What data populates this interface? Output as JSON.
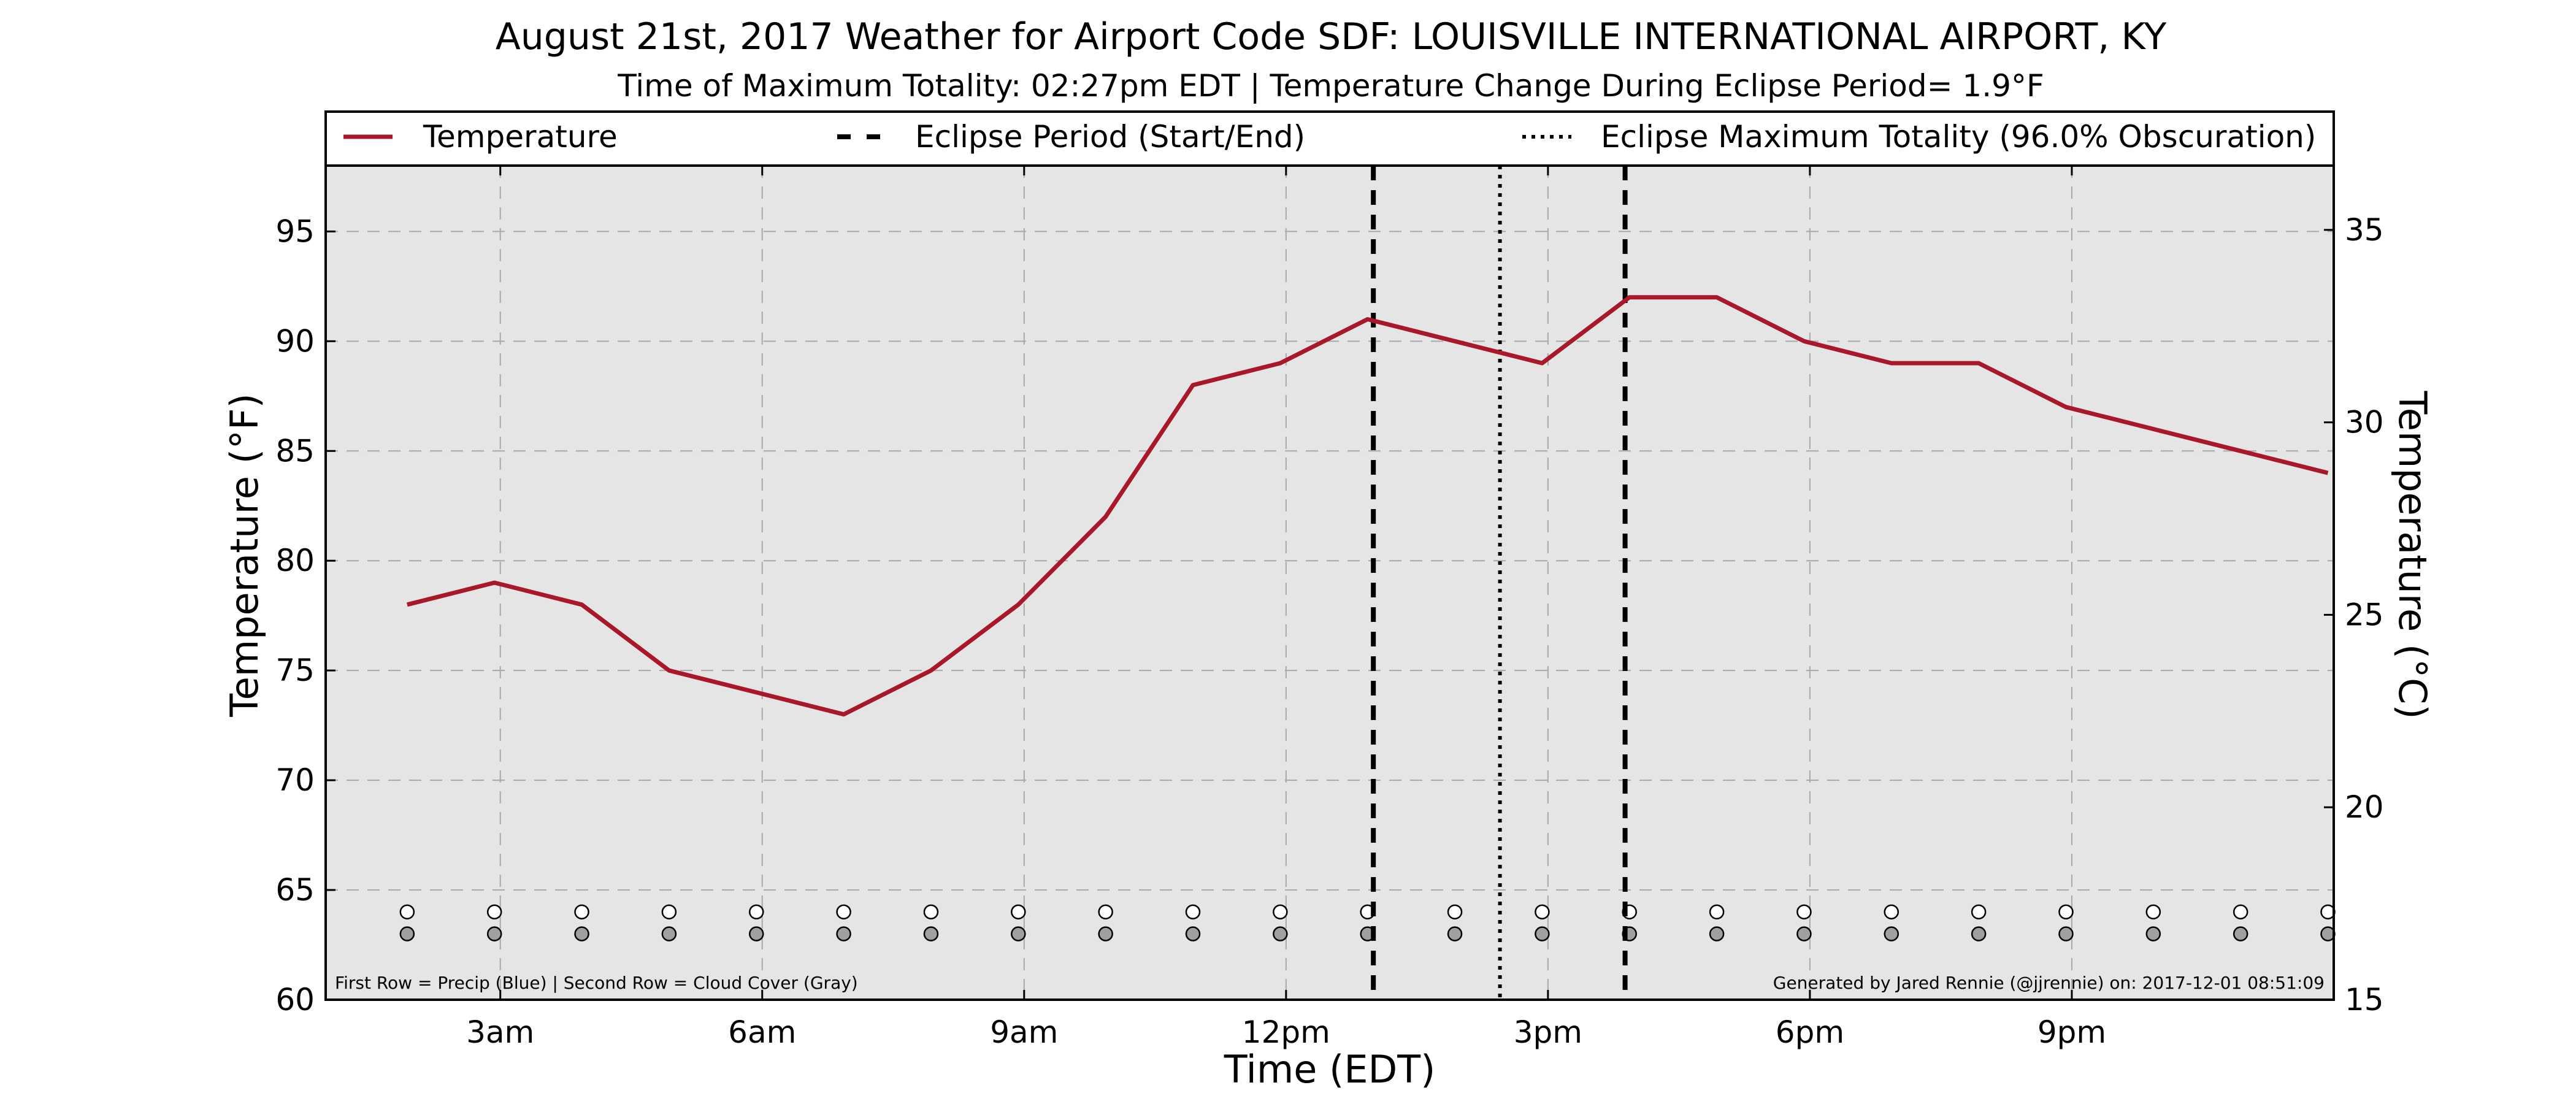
{
  "chart_data": {
    "type": "line",
    "title": "August 21st, 2017 Weather for Airport Code SDF: LOUISVILLE INTERNATIONAL AIRPORT, KY",
    "subtitle": "Time of Maximum Totality: 02:27pm EDT | Temperature Change During Eclipse Period= 1.9°F",
    "xlabel": "Time (EDT)",
    "ylabel": "Temperature (°F)",
    "ylabel_right": "Temperature (°C)",
    "xlim": [
      "01:00",
      "24:00"
    ],
    "ylim": [
      60,
      98
    ],
    "ylim_right": [
      15,
      36.67
    ],
    "x_ticks": [
      {
        "x": "03:00",
        "label": "3am"
      },
      {
        "x": "06:00",
        "label": "6am"
      },
      {
        "x": "09:00",
        "label": "9am"
      },
      {
        "x": "12:00",
        "label": "12pm"
      },
      {
        "x": "15:00",
        "label": "3pm"
      },
      {
        "x": "18:00",
        "label": "6pm"
      },
      {
        "x": "21:00",
        "label": "9pm"
      }
    ],
    "y_ticks": [
      60,
      65,
      70,
      75,
      80,
      85,
      90,
      95
    ],
    "y_ticks_right": [
      15,
      20,
      25,
      30,
      35
    ],
    "grid": true,
    "legend_position": "top",
    "series": [
      {
        "name": "Temperature",
        "color": "#a8172a",
        "x": [
          "01:56",
          "02:56",
          "03:56",
          "04:56",
          "05:56",
          "06:56",
          "07:56",
          "08:56",
          "09:56",
          "10:56",
          "11:56",
          "12:56",
          "13:56",
          "14:56",
          "15:56",
          "16:56",
          "17:56",
          "18:56",
          "19:56",
          "20:56",
          "21:56",
          "22:56",
          "23:56"
        ],
        "values": [
          78,
          79,
          78,
          75,
          74,
          73,
          75,
          78,
          82,
          88,
          89,
          91,
          90,
          89,
          92,
          92,
          90,
          89,
          89,
          87,
          86,
          85,
          84
        ]
      }
    ],
    "eclipse_lines": [
      {
        "name": "Eclipse Period (Start/End)",
        "style": "dashed",
        "x": [
          "13:00",
          "15:53"
        ]
      },
      {
        "name": "Eclipse Maximum Totality (96.0% Obscuration)",
        "style": "dotted",
        "x": [
          "14:27"
        ]
      }
    ],
    "marker_rows": {
      "x": [
        "01:56",
        "02:56",
        "03:56",
        "04:56",
        "05:56",
        "06:56",
        "07:56",
        "08:56",
        "09:56",
        "10:56",
        "11:56",
        "12:56",
        "13:56",
        "14:56",
        "15:56",
        "16:56",
        "17:56",
        "18:56",
        "19:56",
        "20:56",
        "21:56",
        "22:56",
        "23:56"
      ],
      "precip_y": 64,
      "cloud_y": 63,
      "precip_color": "#ffffff",
      "cloud_color": "#a0a0a0"
    },
    "note_left": "First Row = Precip (Blue) | Second Row = Cloud Cover (Gray)",
    "note_right": "Generated by Jared Rennie (@jjrennie) on: 2017-12-01 08:51:09"
  }
}
